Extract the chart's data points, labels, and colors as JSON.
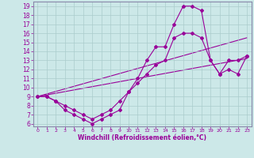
{
  "xlabel": "Windchill (Refroidissement éolien,°C)",
  "bg_color": "#cce8e8",
  "line_color": "#990099",
  "grid_color": "#aacccc",
  "xlim": [
    -0.5,
    23.5
  ],
  "ylim": [
    5.7,
    19.5
  ],
  "xticks": [
    0,
    1,
    2,
    3,
    4,
    5,
    6,
    7,
    8,
    9,
    10,
    11,
    12,
    13,
    14,
    15,
    16,
    17,
    18,
    19,
    20,
    21,
    22,
    23
  ],
  "yticks": [
    6,
    7,
    8,
    9,
    10,
    11,
    12,
    13,
    14,
    15,
    16,
    17,
    18,
    19
  ],
  "line1_x": [
    0,
    1,
    2,
    3,
    4,
    5,
    6,
    7,
    8,
    9,
    10,
    11,
    12,
    13,
    14,
    15,
    16,
    17,
    18,
    19,
    20,
    21,
    22,
    23
  ],
  "line1_y": [
    9,
    9,
    8.5,
    7.5,
    7,
    6.5,
    6,
    6.5,
    7,
    7.5,
    9.5,
    11,
    13,
    14.5,
    14.5,
    17,
    19,
    19,
    18.5,
    13,
    11.5,
    13,
    13,
    13.5
  ],
  "line2_x": [
    0,
    1,
    2,
    3,
    4,
    5,
    6,
    7,
    8,
    9,
    10,
    11,
    12,
    13,
    14,
    15,
    16,
    17,
    18,
    19,
    20,
    21,
    22,
    23
  ],
  "line2_y": [
    9,
    9,
    8.5,
    8,
    7.5,
    7,
    6.5,
    7,
    7.5,
    8.5,
    9.5,
    10.5,
    11.5,
    12.5,
    13,
    15.5,
    16,
    16,
    15.5,
    13,
    11.5,
    12,
    11.5,
    13.5
  ],
  "line3_x": [
    0,
    23
  ],
  "line3_y": [
    9,
    15.5
  ],
  "line4_x": [
    0,
    23
  ],
  "line4_y": [
    9,
    13.2
  ],
  "spine_color": "#8888aa"
}
